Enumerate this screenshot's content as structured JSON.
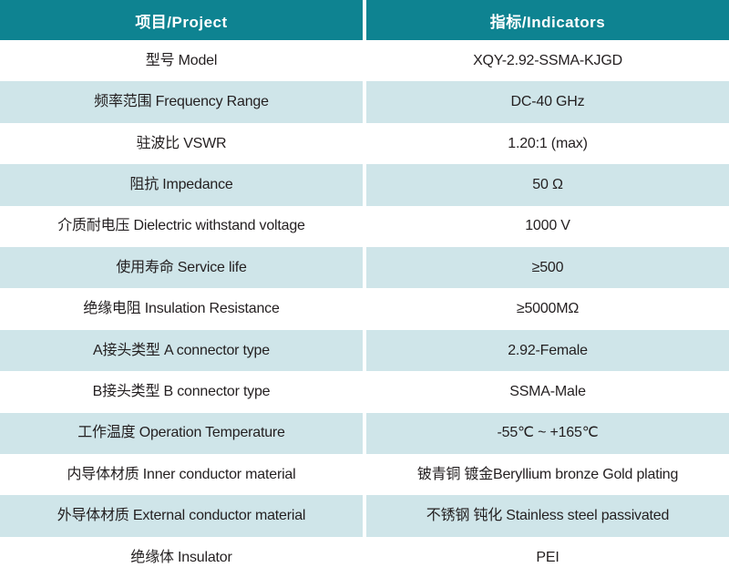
{
  "table": {
    "header": {
      "left": "项目/Project",
      "right": "指标/Indicators"
    },
    "rows": [
      {
        "project": "型号 Model",
        "indicator": "XQY-2.92-SSMA-KJGD"
      },
      {
        "project": "频率范围 Frequency Range",
        "indicator": "DC-40 GHz"
      },
      {
        "project": "驻波比 VSWR",
        "indicator": "1.20:1 (max)"
      },
      {
        "project": "阻抗 Impedance",
        "indicator": "50 Ω"
      },
      {
        "project": "介质耐电压 Dielectric withstand voltage",
        "indicator": "1000 V"
      },
      {
        "project": "使用寿命 Service life",
        "indicator": "≥500"
      },
      {
        "project": "绝缘电阻 Insulation Resistance",
        "indicator": "≥5000MΩ"
      },
      {
        "project": "A接头类型 A connector type",
        "indicator": "2.92-Female"
      },
      {
        "project": "B接头类型 B connector type",
        "indicator": "SSMA-Male"
      },
      {
        "project": "工作温度 Operation Temperature",
        "indicator": "-55℃ ~ +165℃"
      },
      {
        "project": "内导体材质 Inner conductor material",
        "indicator": "铍青铜 镀金Beryllium bronze Gold plating"
      },
      {
        "project": "外导体材质 External conductor material",
        "indicator": "不锈钢 钝化 Stainless steel passivated"
      },
      {
        "project": "绝缘体 Insulator",
        "indicator": "PEI"
      }
    ],
    "colors": {
      "header_bg": "#0e8391",
      "header_text": "#ffffff",
      "row_alt_bg": "#cfe5e9",
      "text": "#231f20"
    }
  }
}
